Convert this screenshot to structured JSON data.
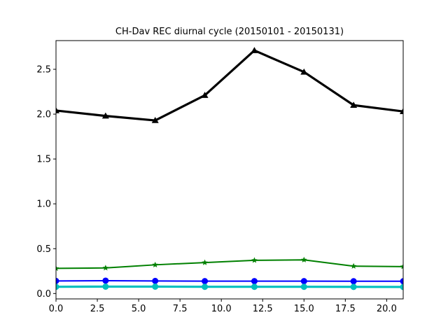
{
  "chart_data": {
    "type": "line",
    "title": "CH-Dav REC diurnal cycle (20150101 - 20150131)",
    "xlabel": "",
    "ylabel": "",
    "xlim": [
      0,
      21
    ],
    "ylim": [
      -0.06,
      2.82
    ],
    "grid": false,
    "x": [
      0,
      3,
      6,
      9,
      12,
      15,
      18,
      21
    ],
    "xticks": [
      0.0,
      2.5,
      5.0,
      7.5,
      10.0,
      12.5,
      15.0,
      17.5,
      20.0
    ],
    "xtick_labels": [
      "0.0",
      "2.5",
      "5.0",
      "7.5",
      "10.0",
      "12.5",
      "15.0",
      "17.5",
      "20.0"
    ],
    "yticks": [
      0.0,
      0.5,
      1.0,
      1.5,
      2.0,
      2.5
    ],
    "ytick_labels": [
      "0.0",
      "0.5",
      "1.0",
      "1.5",
      "2.0",
      "2.5"
    ],
    "series": [
      {
        "color": "#000000",
        "marker": "triangle",
        "line_width": "thick",
        "values": [
          2.04,
          1.98,
          1.93,
          2.21,
          2.71,
          2.47,
          2.1,
          2.03
        ]
      },
      {
        "color": "#008000",
        "marker": "star",
        "line_width": "normal",
        "values": [
          0.28,
          0.285,
          0.32,
          0.345,
          0.37,
          0.375,
          0.305,
          0.3
        ]
      },
      {
        "color": "#0000ff",
        "marker": "circle",
        "line_width": "normal",
        "values": [
          0.14,
          0.143,
          0.14,
          0.138,
          0.138,
          0.138,
          0.137,
          0.137
        ]
      },
      {
        "color": "#00bfbf",
        "marker": "circle",
        "line_width": "thick",
        "values": [
          0.075,
          0.077,
          0.077,
          0.075,
          0.075,
          0.075,
          0.074,
          0.073
        ]
      }
    ]
  }
}
